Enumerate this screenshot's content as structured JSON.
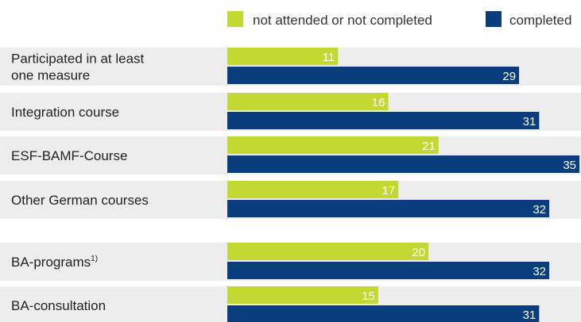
{
  "chart_data": {
    "type": "bar",
    "orientation": "horizontal",
    "title": "",
    "xlabel": "",
    "ylabel": "",
    "xlim": [
      0,
      35
    ],
    "grid": false,
    "legend_position": "top-right",
    "categories": [
      "Participated in at least one measure",
      "Integration course",
      "ESF-BAMF-Course",
      "Other German courses",
      "BA-programs",
      "BA-consultation"
    ],
    "category_footnotes": [
      "",
      "",
      "",
      "",
      "1)",
      ""
    ],
    "series": [
      {
        "name": "not attended or not completed",
        "color": "#c3d833",
        "values": [
          11,
          16,
          21,
          17,
          20,
          15
        ]
      },
      {
        "name": "completed",
        "color": "#0a3d7e",
        "values": [
          29,
          31,
          35,
          32,
          32,
          31
        ]
      }
    ],
    "row_background": "#ededed"
  }
}
